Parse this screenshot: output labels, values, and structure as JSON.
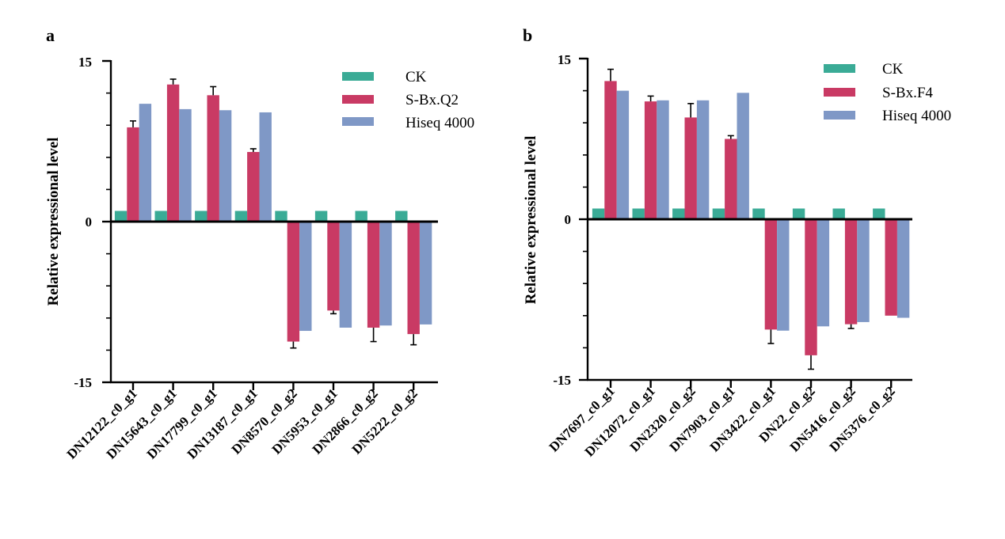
{
  "chart_data": [
    {
      "panel": "a",
      "type": "bar",
      "ylabel": "Relative expressional level",
      "ylim": [
        -15,
        15
      ],
      "yticks": [
        {
          "value": 15,
          "label": "15"
        },
        {
          "value": 0,
          "label": "0"
        },
        {
          "value": -15,
          "label": "-15"
        }
      ],
      "categories": [
        "DN12122_c0_g1",
        "DN15643_c0_g1",
        "DN17799_c0_g1",
        "DN13187_c0_g1",
        "DN8570_c0_g2",
        "DN5953_c0_g1",
        "DN2866_c0_g2",
        "DN5222_c0_g2"
      ],
      "series": [
        {
          "name": "CK",
          "color": "#3aab96",
          "values": [
            1,
            1,
            1,
            1,
            1,
            1,
            1,
            1
          ],
          "errors": [
            0,
            0,
            0,
            0,
            0,
            0,
            0,
            0
          ]
        },
        {
          "name": "S-Bx.Q2",
          "color": "#c93a64",
          "values": [
            8.8,
            12.8,
            11.8,
            6.5,
            -11.2,
            -8.3,
            -9.9,
            -10.5
          ],
          "errors": [
            0.6,
            0.5,
            0.8,
            0.3,
            0.6,
            0.3,
            1.3,
            1.0
          ]
        },
        {
          "name": "Hiseq 4000",
          "color": "#7f98c6",
          "values": [
            11.0,
            10.5,
            10.4,
            10.2,
            -10.2,
            -9.9,
            -9.7,
            -9.6
          ],
          "errors": [
            0,
            0,
            0,
            0,
            0,
            0,
            0,
            0
          ]
        }
      ]
    },
    {
      "panel": "b",
      "type": "bar",
      "ylabel": "Relative expressional level",
      "ylim": [
        -15,
        15
      ],
      "yticks": [
        {
          "value": 15,
          "label": "15"
        },
        {
          "value": 0,
          "label": "0"
        },
        {
          "value": -15,
          "label": "-15"
        }
      ],
      "categories": [
        "DN7697_c0_g1",
        "DN12072_c0_g1",
        "DN2320_c0_g2",
        "DN7903_c0_g1",
        "DN3422_c0_g1",
        "DN22_c0_g2",
        "DN5416_c0_g2",
        "DN5376_c0_g2"
      ],
      "series": [
        {
          "name": "CK",
          "color": "#3aab96",
          "values": [
            1,
            1,
            1,
            1,
            1,
            1,
            1,
            1
          ],
          "errors": [
            0,
            0,
            0,
            0,
            0,
            0,
            0,
            0
          ]
        },
        {
          "name": "S-Bx.F4",
          "color": "#c93a64",
          "values": [
            12.9,
            11.0,
            9.5,
            7.5,
            -10.3,
            -12.7,
            -9.8,
            -9.0
          ],
          "errors": [
            1.1,
            0.5,
            1.3,
            0.3,
            1.3,
            1.3,
            0.4,
            0
          ]
        },
        {
          "name": "Hiseq 4000",
          "color": "#7f98c6",
          "values": [
            12.0,
            11.1,
            11.1,
            11.8,
            -10.4,
            -10.0,
            -9.6,
            -9.2
          ],
          "errors": [
            0,
            0,
            0,
            0,
            0,
            0,
            0,
            0
          ]
        }
      ]
    }
  ]
}
